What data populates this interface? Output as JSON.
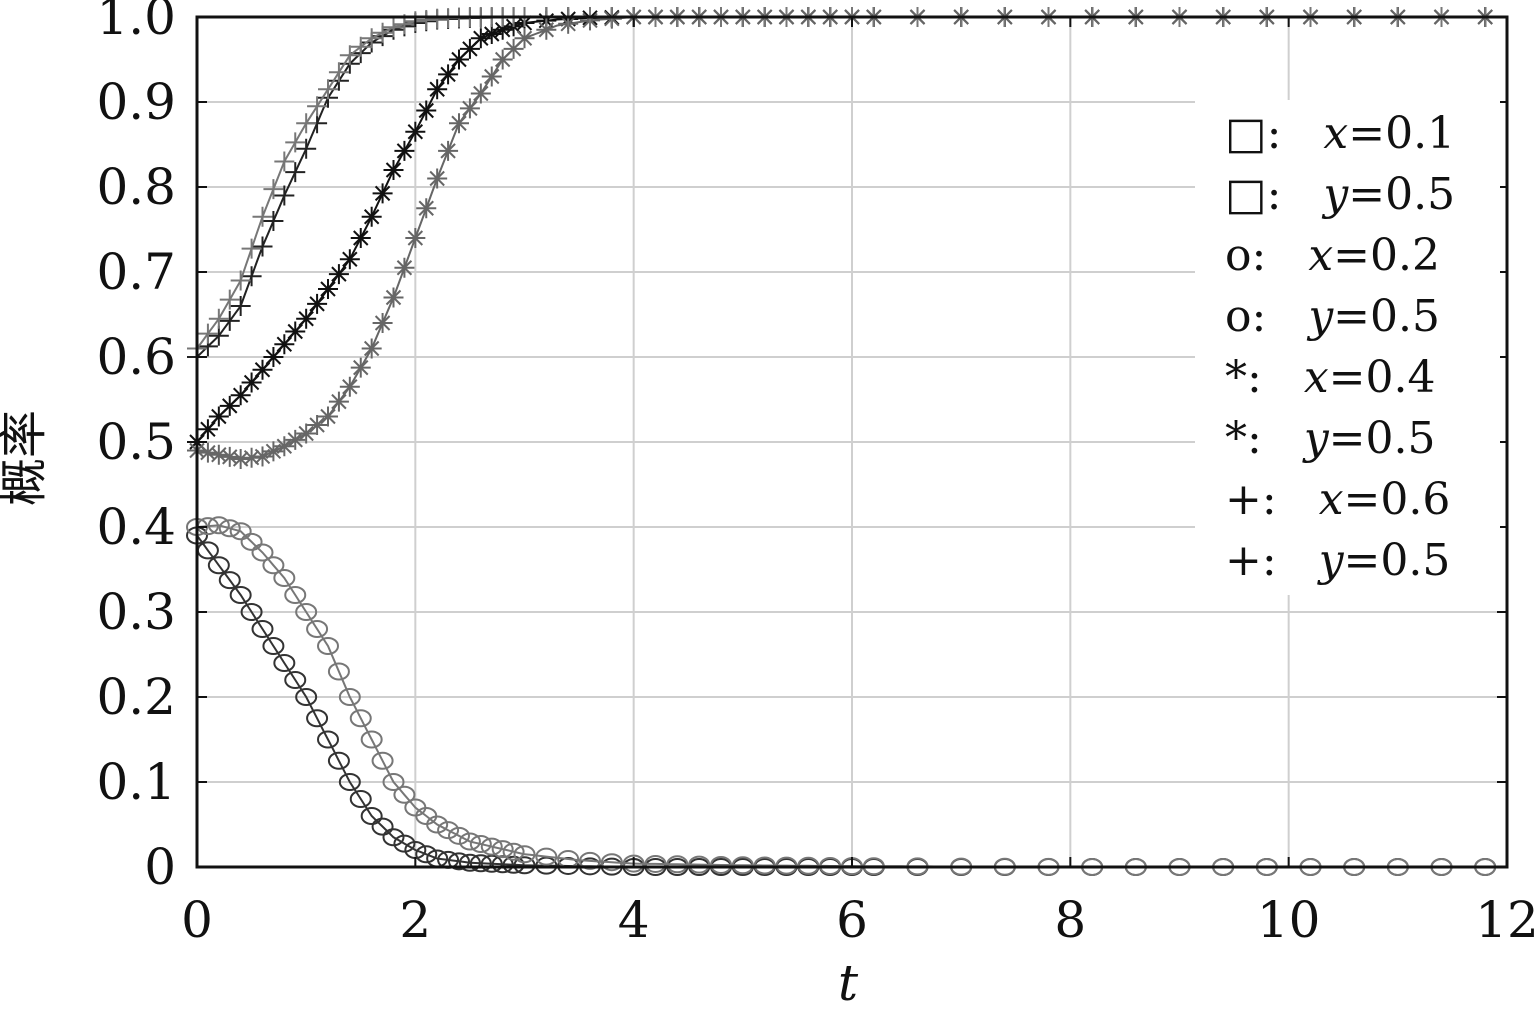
{
  "chart_data": {
    "type": "line",
    "title": "",
    "xlabel": "t",
    "ylabel": "概率",
    "xlim": [
      0,
      12
    ],
    "ylim": [
      0,
      1.0
    ],
    "xticks": [
      "0",
      "2",
      "4",
      "6",
      "8",
      "10",
      "12"
    ],
    "yticks": [
      "0",
      "0.1",
      "0.2",
      "0.3",
      "0.4",
      "0.5",
      "0.6",
      "0.7",
      "0.8",
      "0.9",
      "1.0"
    ],
    "grid": true,
    "legend_position": "right",
    "legend": [
      {
        "marker": "□:",
        "var": "x",
        "value": "=0.1"
      },
      {
        "marker": "□:",
        "var": "y",
        "value": "=0.5"
      },
      {
        "marker": "o:",
        "var": "x",
        "value": "=0.2"
      },
      {
        "marker": "o:",
        "var": "y",
        "value": "=0.5"
      },
      {
        "marker": "*:",
        "var": "x",
        "value": "=0.4"
      },
      {
        "marker": "*:",
        "var": "y",
        "value": "=0.5"
      },
      {
        "marker": "+:",
        "var": "x",
        "value": "=0.6"
      },
      {
        "marker": "+:",
        "var": "y",
        "value": "=0.5"
      }
    ],
    "series": [
      {
        "marker": "circle",
        "color": "#333333",
        "x": [
          0,
          0.2,
          0.4,
          0.6,
          0.8,
          1.0,
          1.2,
          1.4,
          1.6,
          1.8,
          2.0,
          2.2,
          2.5,
          3.0,
          3.5,
          4.0,
          5.0,
          6.0,
          8.0,
          10.0,
          12.0
        ],
        "y": [
          0.39,
          0.355,
          0.32,
          0.28,
          0.24,
          0.2,
          0.15,
          0.1,
          0.06,
          0.035,
          0.02,
          0.01,
          0.005,
          0.002,
          0.001,
          0,
          0,
          0,
          0,
          0,
          0
        ]
      },
      {
        "marker": "circle",
        "color": "#777777",
        "x": [
          0,
          0.2,
          0.4,
          0.6,
          0.8,
          1.0,
          1.2,
          1.4,
          1.6,
          1.8,
          2.0,
          2.2,
          2.5,
          3.0,
          3.5,
          4.0,
          5.0,
          6.0,
          8.0,
          10.0,
          12.0
        ],
        "y": [
          0.4,
          0.402,
          0.395,
          0.37,
          0.34,
          0.3,
          0.26,
          0.2,
          0.15,
          0.1,
          0.07,
          0.05,
          0.03,
          0.015,
          0.008,
          0.004,
          0.002,
          0.001,
          0,
          0,
          0
        ]
      },
      {
        "marker": "star",
        "color": "#111111",
        "x": [
          0,
          0.2,
          0.4,
          0.6,
          0.8,
          1.0,
          1.2,
          1.4,
          1.6,
          1.8,
          2.0,
          2.2,
          2.4,
          2.6,
          2.8,
          3.0,
          3.3,
          3.6,
          4.0,
          5.0,
          6.0,
          8.0,
          10.0,
          12.0
        ],
        "y": [
          0.5,
          0.53,
          0.555,
          0.585,
          0.615,
          0.645,
          0.68,
          0.715,
          0.765,
          0.82,
          0.865,
          0.915,
          0.95,
          0.975,
          0.985,
          0.993,
          0.997,
          0.999,
          1.0,
          1.0,
          1.0,
          1.0,
          1.0,
          1.0
        ]
      },
      {
        "marker": "star",
        "color": "#666666",
        "x": [
          0,
          0.2,
          0.4,
          0.6,
          0.8,
          1.0,
          1.2,
          1.4,
          1.6,
          1.8,
          2.0,
          2.2,
          2.4,
          2.6,
          2.8,
          3.0,
          3.3,
          3.6,
          4.0,
          5.0,
          6.0,
          8.0,
          10.0,
          12.0
        ],
        "y": [
          0.49,
          0.485,
          0.48,
          0.483,
          0.495,
          0.51,
          0.53,
          0.565,
          0.61,
          0.67,
          0.74,
          0.81,
          0.875,
          0.91,
          0.95,
          0.975,
          0.99,
          0.996,
          1.0,
          1.0,
          1.0,
          1.0,
          1.0,
          1.0
        ]
      },
      {
        "marker": "plus",
        "color": "#222222",
        "x": [
          0,
          0.2,
          0.4,
          0.6,
          0.8,
          1.0,
          1.2,
          1.4,
          1.6,
          1.8,
          2.0,
          2.2,
          2.5,
          3.0,
          3.5,
          4.0,
          5.0,
          6.0,
          8.0,
          10.0,
          12.0
        ],
        "y": [
          0.6,
          0.625,
          0.66,
          0.73,
          0.79,
          0.845,
          0.905,
          0.945,
          0.97,
          0.985,
          0.993,
          0.997,
          0.999,
          1.0,
          1.0,
          1.0,
          1.0,
          1.0,
          1.0,
          1.0,
          1.0
        ]
      },
      {
        "marker": "plus",
        "color": "#777777",
        "x": [
          0,
          0.2,
          0.4,
          0.6,
          0.8,
          1.0,
          1.2,
          1.4,
          1.6,
          1.8,
          2.0,
          2.2,
          2.5,
          3.0,
          3.5,
          4.0,
          5.0,
          6.0,
          8.0,
          10.0,
          12.0
        ],
        "y": [
          0.61,
          0.645,
          0.69,
          0.765,
          0.83,
          0.875,
          0.915,
          0.955,
          0.975,
          0.988,
          0.995,
          0.998,
          1.0,
          1.0,
          1.0,
          1.0,
          1.0,
          1.0,
          1.0,
          1.0,
          1.0
        ]
      }
    ]
  }
}
